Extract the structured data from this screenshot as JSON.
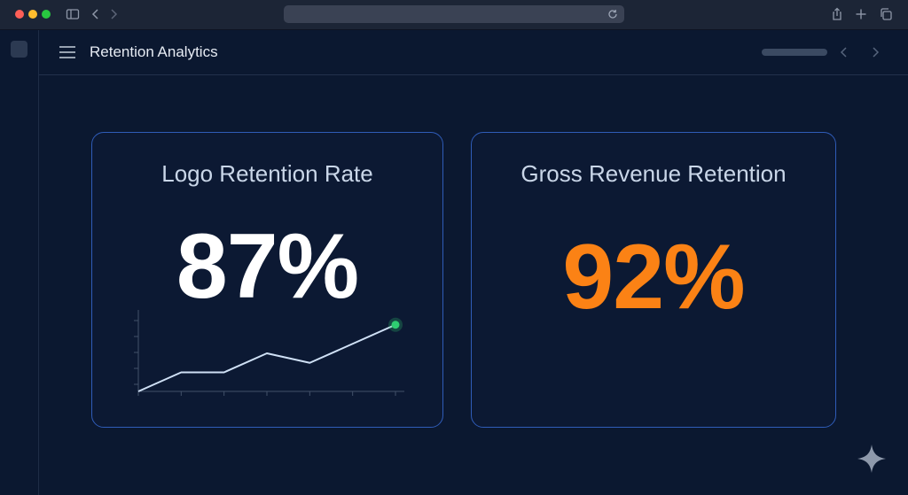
{
  "app": {
    "title": "Retention Analytics"
  },
  "cards": [
    {
      "label": "Logo Retention Rate",
      "value": "87%"
    },
    {
      "label": "Gross Revenue Retention",
      "value": "92%"
    }
  ],
  "chart_data": {
    "type": "line",
    "x": [
      0,
      1,
      2,
      3,
      4,
      5,
      6
    ],
    "values": [
      0,
      1,
      1,
      2,
      1.5,
      2.5,
      3.5
    ],
    "title": "",
    "xlabel": "",
    "ylabel": "",
    "ylim": [
      0,
      4
    ],
    "grid": false,
    "highlight_last_point": true
  },
  "colors": {
    "background": "#0b1830",
    "card_border": "#2f5cb8",
    "accent_orange": "#fb8215",
    "spark_line": "#cfe0f5",
    "spark_point": "#2ecc71"
  },
  "icons": {
    "sidebar_toggle": "sidebar-icon",
    "back": "chevron-left-icon",
    "forward": "chevron-right-icon",
    "reload": "reload-icon",
    "share": "share-icon",
    "new_tab": "plus-icon",
    "tabs": "tabs-icon",
    "menu": "hamburger-icon",
    "assistant": "sparkle-icon"
  }
}
